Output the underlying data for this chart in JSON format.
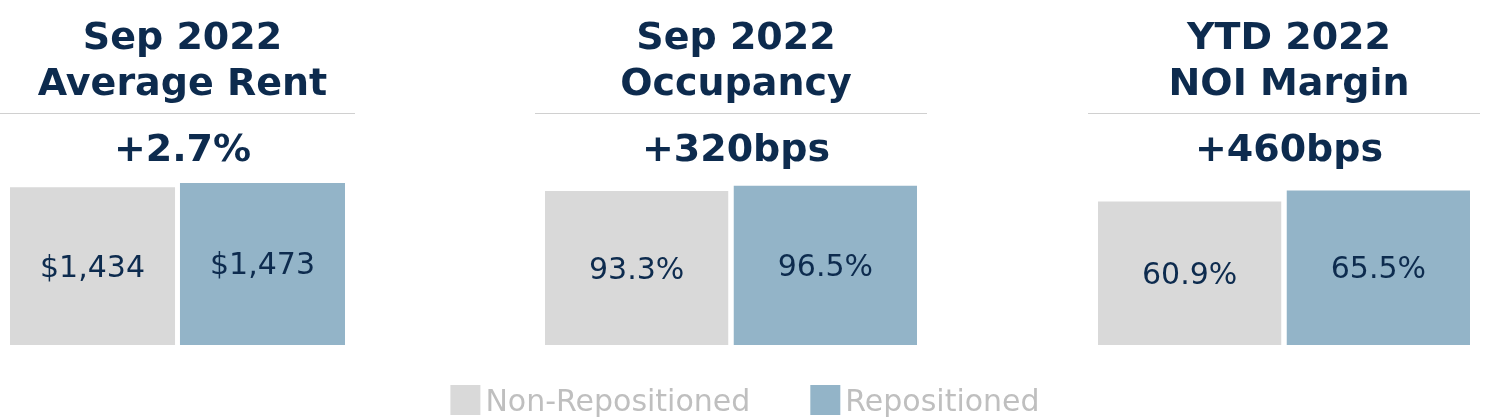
{
  "chart_data": [
    {
      "type": "bar",
      "title": "Sep 2022\nAverage Rent",
      "subtitle": "+2.7%",
      "categories": [
        null
      ],
      "legend": false,
      "series": [
        {
          "color": "#d9d9d9",
          "values": [
            1434
          ],
          "value_labels": [
            "$1,434"
          ]
        },
        {
          "color": "#93b4c8",
          "values": [
            1473
          ],
          "value_labels": [
            "$1,473"
          ]
        }
      ]
    },
    {
      "type": "bar",
      "title": "Sep 2022\nOccupancy",
      "subtitle": "+320bps",
      "categories": [
        null
      ],
      "legend": "bottom",
      "series": [
        {
          "name": "Non-Repositioned",
          "color": "#d9d9d9",
          "values": [
            93.3
          ],
          "value_labels": [
            "93.3%"
          ]
        },
        {
          "name": "Repositioned",
          "color": "#93b4c8",
          "values": [
            96.5
          ],
          "value_labels": [
            "96.5%"
          ]
        }
      ]
    },
    {
      "type": "bar",
      "title": "YTD 2022\nNOI Margin",
      "subtitle": "+460bps",
      "categories": [
        null
      ],
      "legend": false,
      "series": [
        {
          "color": "#d9d9d9",
          "values": [
            60.9
          ],
          "value_labels": [
            "60.9%"
          ]
        },
        {
          "color": "#93b4c8",
          "values": [
            65.5
          ],
          "value_labels": [
            "65.5%"
          ]
        }
      ]
    }
  ]
}
